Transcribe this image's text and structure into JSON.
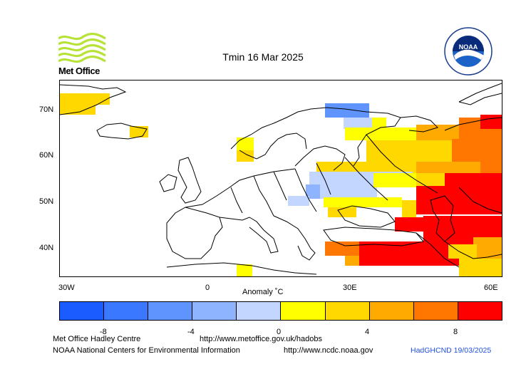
{
  "title": "Tmin 16 Mar 2025",
  "logo_text": "Met Office",
  "lat_labels": [
    "70N",
    "60N",
    "50N",
    "40N"
  ],
  "lon_labels": [
    "30W",
    "0",
    "30E",
    "60E"
  ],
  "colorbar": {
    "title": "Anomaly ˚C",
    "tick_labels": [
      "-8",
      "-4",
      "0",
      "4",
      "8"
    ],
    "colors": [
      "#1a5cff",
      "#3a78ff",
      "#5f94ff",
      "#8fb4ff",
      "#c2d6ff",
      "#ffff00",
      "#ffd800",
      "#ffaa00",
      "#ff7700",
      "#ff0000"
    ]
  },
  "footer": {
    "line1_left": "Met Office Hadley Centre",
    "line1_right": "http://www.metoffice.gov.uk/hadobs",
    "line2_left": "NOAA National Centers for Environmental Information",
    "line2_right": "http://www.ncdc.noaa.gov",
    "stamp": "HadGHCND 19/03/2025"
  },
  "noaa_badge": "NOAA"
}
